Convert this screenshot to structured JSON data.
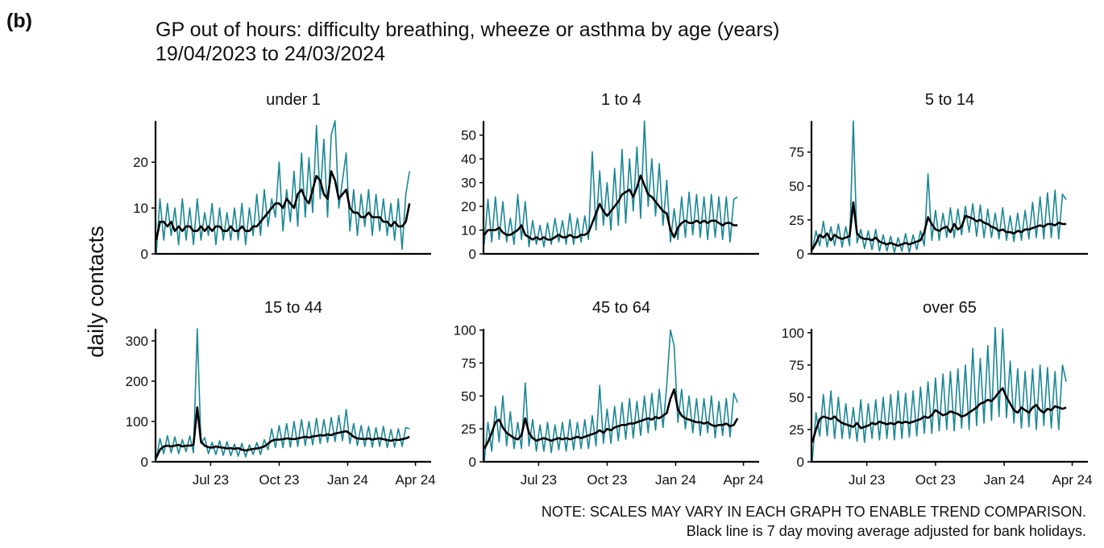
{
  "panel_label": "(b)",
  "chart_data": {
    "type": "line",
    "title": "GP out of hours: difficulty breathing, wheeze or asthma by age (years)",
    "subtitle": "19/04/2023 to 24/03/2024",
    "y_label": "daily contacts",
    "notes": [
      "NOTE: SCALES MAY VARY IN EACH GRAPH TO ENABLE TREND COMPARISON.",
      "Black line is 7 day moving average adjusted for bank holidays."
    ],
    "x": [
      "2023-04-19",
      "2023-04-24",
      "2023-04-29",
      "2023-05-04",
      "2023-05-09",
      "2023-05-14",
      "2023-05-19",
      "2023-05-24",
      "2023-05-29",
      "2023-06-03",
      "2023-06-08",
      "2023-06-13",
      "2023-06-18",
      "2023-06-23",
      "2023-06-28",
      "2023-07-03",
      "2023-07-08",
      "2023-07-13",
      "2023-07-18",
      "2023-07-23",
      "2023-07-28",
      "2023-08-02",
      "2023-08-07",
      "2023-08-12",
      "2023-08-17",
      "2023-08-22",
      "2023-08-27",
      "2023-09-01",
      "2023-09-06",
      "2023-09-11",
      "2023-09-16",
      "2023-09-21",
      "2023-09-26",
      "2023-10-01",
      "2023-10-06",
      "2023-10-11",
      "2023-10-16",
      "2023-10-21",
      "2023-10-26",
      "2023-10-31",
      "2023-11-05",
      "2023-11-10",
      "2023-11-15",
      "2023-11-20",
      "2023-11-25",
      "2023-11-30",
      "2023-12-05",
      "2023-12-10",
      "2023-12-15",
      "2023-12-20",
      "2023-12-25",
      "2023-12-30",
      "2024-01-04",
      "2024-01-09",
      "2024-01-14",
      "2024-01-19",
      "2024-01-24",
      "2024-01-29",
      "2024-02-03",
      "2024-02-08",
      "2024-02-13",
      "2024-02-18",
      "2024-02-23",
      "2024-02-28",
      "2024-03-04",
      "2024-03-09",
      "2024-03-14",
      "2024-03-19",
      "2024-03-24"
    ],
    "xlim": [
      "2023-04-18",
      "2024-04-22"
    ],
    "xticks": [
      {
        "value": "2023-07-01",
        "label": "Jul 23"
      },
      {
        "value": "2023-10-01",
        "label": "Oct 23"
      },
      {
        "value": "2024-01-01",
        "label": "Jan 24"
      },
      {
        "value": "2024-04-01",
        "label": "Apr 24"
      }
    ],
    "panels": [
      {
        "title": "under 1",
        "ylim": [
          0,
          29
        ],
        "yticks": [
          0,
          10,
          20
        ],
        "series": [
          {
            "color": "#1a8796",
            "values": [
              0,
              12,
              3,
              11,
              4,
              10,
              2,
              12,
              3,
              10,
              2,
              12,
              3,
              9,
              4,
              11,
              2,
              10,
              3,
              9,
              3,
              10,
              3,
              11,
              2,
              10,
              4,
              13,
              4,
              14,
              6,
              12,
              8,
              20,
              5,
              14,
              7,
              18,
              6,
              22,
              8,
              21,
              9,
              28,
              12,
              25,
              8,
              26,
              29,
              10,
              16,
              22,
              5,
              14,
              4,
              13,
              6,
              14,
              4,
              13,
              5,
              12,
              4,
              11,
              3,
              12,
              1,
              13,
              18
            ]
          },
          {
            "color": "#000000",
            "values": [
              3,
              7,
              7,
              6,
              7,
              5,
              6,
              5,
              6,
              6,
              5,
              5,
              6,
              5,
              6,
              5,
              6,
              6,
              5,
              5,
              6,
              5,
              5,
              6,
              5,
              5,
              6,
              6,
              7,
              8,
              9,
              10,
              11,
              11,
              10,
              12,
              11,
              10,
              13,
              14,
              12,
              11,
              14,
              17,
              16,
              13,
              12,
              18,
              16,
              12,
              13,
              14,
              10,
              9,
              9,
              8,
              8,
              9,
              8,
              8,
              8,
              7,
              7,
              6,
              7,
              6,
              6,
              7,
              11
            ]
          }
        ]
      },
      {
        "title": "1 to 4",
        "ylim": [
          0,
          56
        ],
        "yticks": [
          0,
          10,
          20,
          30,
          40,
          50
        ],
        "series": [
          {
            "color": "#1a8796",
            "values": [
              4,
              23,
              5,
              24,
              6,
              22,
              5,
              15,
              4,
              25,
              6,
              22,
              3,
              14,
              4,
              12,
              3,
              13,
              4,
              15,
              5,
              14,
              4,
              17,
              4,
              15,
              5,
              16,
              6,
              43,
              10,
              35,
              12,
              30,
              10,
              36,
              12,
              44,
              13,
              40,
              18,
              45,
              15,
              56,
              20,
              40,
              16,
              38,
              12,
              31,
              5,
              19,
              6,
              24,
              7,
              26,
              8,
              25,
              7,
              24,
              6,
              25,
              7,
              24,
              6,
              24,
              5,
              23,
              24
            ]
          },
          {
            "color": "#000000",
            "values": [
              8,
              10,
              10,
              10,
              11,
              9,
              8,
              8,
              9,
              10,
              12,
              8,
              7,
              6,
              7,
              6,
              7,
              6,
              6,
              7,
              8,
              7,
              7,
              8,
              7,
              7,
              8,
              8,
              9,
              13,
              17,
              21,
              18,
              16,
              18,
              20,
              22,
              25,
              26,
              27,
              24,
              28,
              33,
              29,
              25,
              24,
              22,
              20,
              18,
              17,
              10,
              7,
              11,
              13,
              14,
              13,
              13,
              14,
              13,
              14,
              13,
              14,
              14,
              13,
              12,
              13,
              13,
              12,
              12
            ]
          }
        ]
      },
      {
        "title": "5 to 14",
        "ylim": [
          0,
          98
        ],
        "yticks": [
          0,
          25,
          50,
          75
        ],
        "series": [
          {
            "color": "#1a8796",
            "values": [
              2,
              17,
              6,
              24,
              5,
              20,
              6,
              22,
              5,
              20,
              6,
              98,
              8,
              18,
              4,
              17,
              3,
              18,
              2,
              14,
              2,
              13,
              1,
              12,
              2,
              15,
              1,
              14,
              3,
              17,
              6,
              59,
              10,
              32,
              10,
              30,
              12,
              34,
              12,
              33,
              14,
              35,
              16,
              37,
              13,
              36,
              12,
              33,
              12,
              30,
              11,
              34,
              10,
              28,
              9,
              30,
              10,
              32,
              11,
              38,
              12,
              42,
              11,
              45,
              12,
              47,
              11,
              44,
              40
            ]
          },
          {
            "color": "#000000",
            "values": [
              3,
              8,
              14,
              12,
              15,
              10,
              14,
              12,
              11,
              12,
              13,
              38,
              15,
              12,
              11,
              11,
              10,
              12,
              9,
              8,
              7,
              8,
              7,
              6,
              7,
              8,
              7,
              8,
              9,
              10,
              16,
              27,
              22,
              18,
              17,
              19,
              20,
              16,
              22,
              18,
              20,
              28,
              27,
              26,
              24,
              25,
              23,
              22,
              20,
              19,
              17,
              18,
              16,
              16,
              15,
              17,
              16,
              18,
              18,
              19,
              20,
              21,
              20,
              22,
              22,
              21,
              23,
              22,
              22
            ]
          }
        ]
      },
      {
        "title": "15 to 44",
        "ylim": [
          0,
          330
        ],
        "yticks": [
          0,
          100,
          200,
          300
        ],
        "series": [
          {
            "color": "#1a8796",
            "values": [
              5,
              58,
              20,
              65,
              22,
              62,
              20,
              55,
              25,
              64,
              22,
              330,
              45,
              60,
              20,
              48,
              18,
              52,
              16,
              50,
              15,
              44,
              14,
              46,
              12,
              42,
              18,
              48,
              18,
              55,
              30,
              82,
              35,
              90,
              35,
              95,
              36,
              100,
              38,
              105,
              40,
              100,
              42,
              108,
              45,
              105,
              48,
              110,
              50,
              115,
              52,
              130,
              45,
              95,
              40,
              90,
              38,
              88,
              36,
              85,
              38,
              88,
              35,
              80,
              36,
              82,
              38,
              85,
              82
            ]
          },
          {
            "color": "#000000",
            "values": [
              10,
              30,
              38,
              40,
              38,
              40,
              42,
              38,
              40,
              40,
              42,
              135,
              50,
              40,
              36,
              35,
              38,
              36,
              35,
              33,
              34,
              32,
              34,
              30,
              28,
              30,
              32,
              33,
              35,
              38,
              45,
              52,
              55,
              55,
              56,
              58,
              57,
              56,
              58,
              60,
              62,
              60,
              63,
              64,
              66,
              65,
              68,
              66,
              70,
              72,
              74,
              76,
              70,
              62,
              58,
              57,
              56,
              58,
              55,
              57,
              58,
              56,
              54,
              52,
              55,
              54,
              56,
              58,
              62
            ]
          }
        ]
      },
      {
        "title": "45 to 64",
        "ylim": [
          0,
          101
        ],
        "yticks": [
          0,
          25,
          50,
          75,
          100
        ],
        "series": [
          {
            "color": "#1a8796",
            "values": [
              0,
              30,
              8,
              42,
              15,
              50,
              12,
              38,
              10,
              30,
              10,
              60,
              12,
              32,
              8,
              28,
              8,
              30,
              7,
              28,
              9,
              30,
              8,
              32,
              9,
              30,
              10,
              32,
              10,
              35,
              12,
              58,
              14,
              40,
              14,
              42,
              16,
              45,
              17,
              48,
              18,
              46,
              20,
              50,
              22,
              52,
              24,
              55,
              26,
              58,
              100,
              88,
              30,
              55,
              25,
              50,
              22,
              48,
              20,
              48,
              22,
              50,
              18,
              46,
              20,
              48,
              19,
              52,
              45
            ]
          },
          {
            "color": "#000000",
            "values": [
              10,
              15,
              22,
              30,
              32,
              26,
              22,
              20,
              18,
              17,
              20,
              33,
              22,
              18,
              16,
              17,
              18,
              17,
              16,
              17,
              18,
              17,
              18,
              17,
              18,
              19,
              18,
              19,
              20,
              21,
              22,
              24,
              22,
              25,
              24,
              26,
              27,
              28,
              28,
              29,
              29,
              30,
              31,
              32,
              33,
              32,
              34,
              33,
              35,
              37,
              48,
              55,
              40,
              35,
              33,
              32,
              31,
              30,
              30,
              29,
              30,
              28,
              27,
              28,
              28,
              29,
              27,
              28,
              33
            ]
          }
        ]
      },
      {
        "title": "over 65",
        "ylim": [
          0,
          103
        ],
        "yticks": [
          0,
          25,
          50,
          75,
          100
        ],
        "series": [
          {
            "color": "#1a8796",
            "values": [
              0,
              38,
              20,
              52,
              20,
              55,
              18,
              50,
              18,
              45,
              18,
              42,
              16,
              48,
              15,
              45,
              18,
              48,
              17,
              50,
              18,
              52,
              17,
              55,
              18,
              53,
              19,
              55,
              20,
              58,
              22,
              62,
              22,
              65,
              24,
              68,
              25,
              70,
              24,
              72,
              26,
              75,
              25,
              88,
              28,
              80,
              30,
              90,
              32,
              104,
              35,
              103,
              34,
              78,
              30,
              72,
              26,
              70,
              27,
              72,
              25,
              75,
              28,
              73,
              26,
              70,
              25,
              75,
              62
            ]
          },
          {
            "color": "#000000",
            "values": [
              15,
              25,
              33,
              35,
              34,
              33,
              35,
              32,
              30,
              29,
              28,
              27,
              30,
              26,
              27,
              28,
              30,
              29,
              31,
              30,
              29,
              30,
              29,
              31,
              30,
              31,
              30,
              31,
              32,
              33,
              35,
              34,
              36,
              40,
              38,
              36,
              37,
              39,
              38,
              37,
              35,
              36,
              38,
              40,
              42,
              45,
              46,
              48,
              47,
              50,
              54,
              57,
              50,
              45,
              40,
              38,
              42,
              40,
              38,
              42,
              44,
              40,
              38,
              41,
              40,
              43,
              42,
              41,
              42
            ]
          }
        ]
      }
    ]
  }
}
